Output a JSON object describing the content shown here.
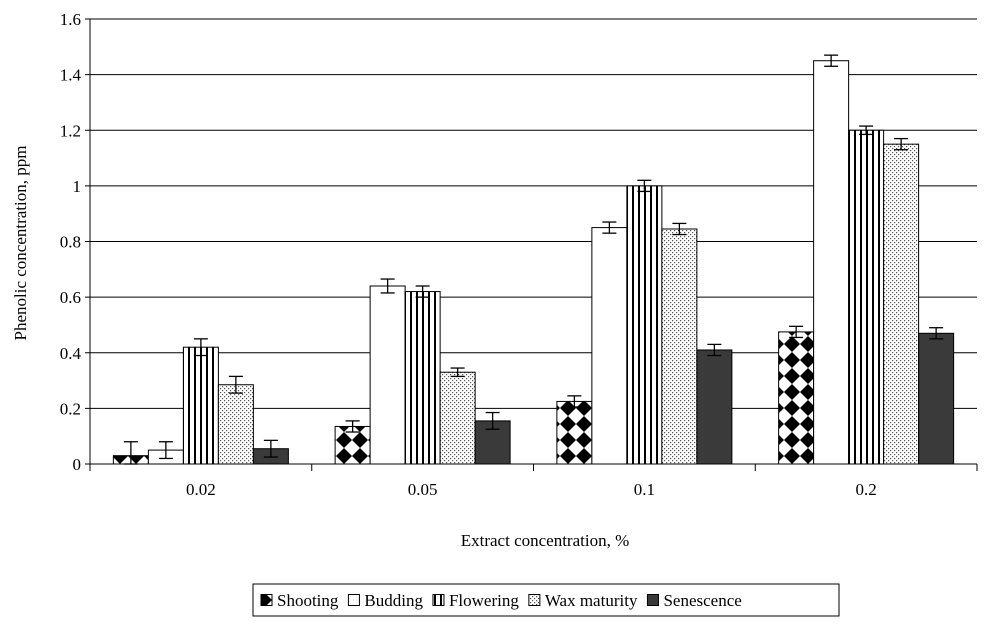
{
  "chart_data": {
    "type": "bar",
    "categories": [
      "0.02",
      "0.05",
      "0.1",
      "0.2"
    ],
    "series": [
      {
        "name": "Shooting",
        "values": [
          0.03,
          0.135,
          0.225,
          0.475
        ],
        "errors": [
          0.05,
          0.02,
          0.02,
          0.02
        ],
        "pattern": "checker"
      },
      {
        "name": "Budding",
        "values": [
          0.05,
          0.64,
          0.85,
          1.45
        ],
        "errors": [
          0.03,
          0.025,
          0.02,
          0.02
        ],
        "pattern": "white"
      },
      {
        "name": "Flowering",
        "values": [
          0.42,
          0.62,
          1.0,
          1.2
        ],
        "errors": [
          0.03,
          0.02,
          0.02,
          0.015
        ],
        "pattern": "vstripes"
      },
      {
        "name": "Wax maturity",
        "values": [
          0.285,
          0.33,
          0.845,
          1.15
        ],
        "errors": [
          0.03,
          0.015,
          0.02,
          0.02
        ],
        "pattern": "dots"
      },
      {
        "name": "Senescence",
        "values": [
          0.055,
          0.155,
          0.41,
          0.47
        ],
        "errors": [
          0.03,
          0.03,
          0.02,
          0.02
        ],
        "pattern": "dark"
      }
    ],
    "xlabel": "Extract concentration, %",
    "ylabel": "Phenolic concentration, ppm",
    "ylim": [
      0,
      1.6
    ],
    "yticks": [
      "0",
      "0.2",
      "0.4",
      "0.6",
      "0.8",
      "1",
      "1.2",
      "1.4",
      "1.6"
    ],
    "grid": true,
    "legend_position": "bottom",
    "colors": {
      "dark": "#3a3a3a",
      "grid": "#000000"
    }
  }
}
